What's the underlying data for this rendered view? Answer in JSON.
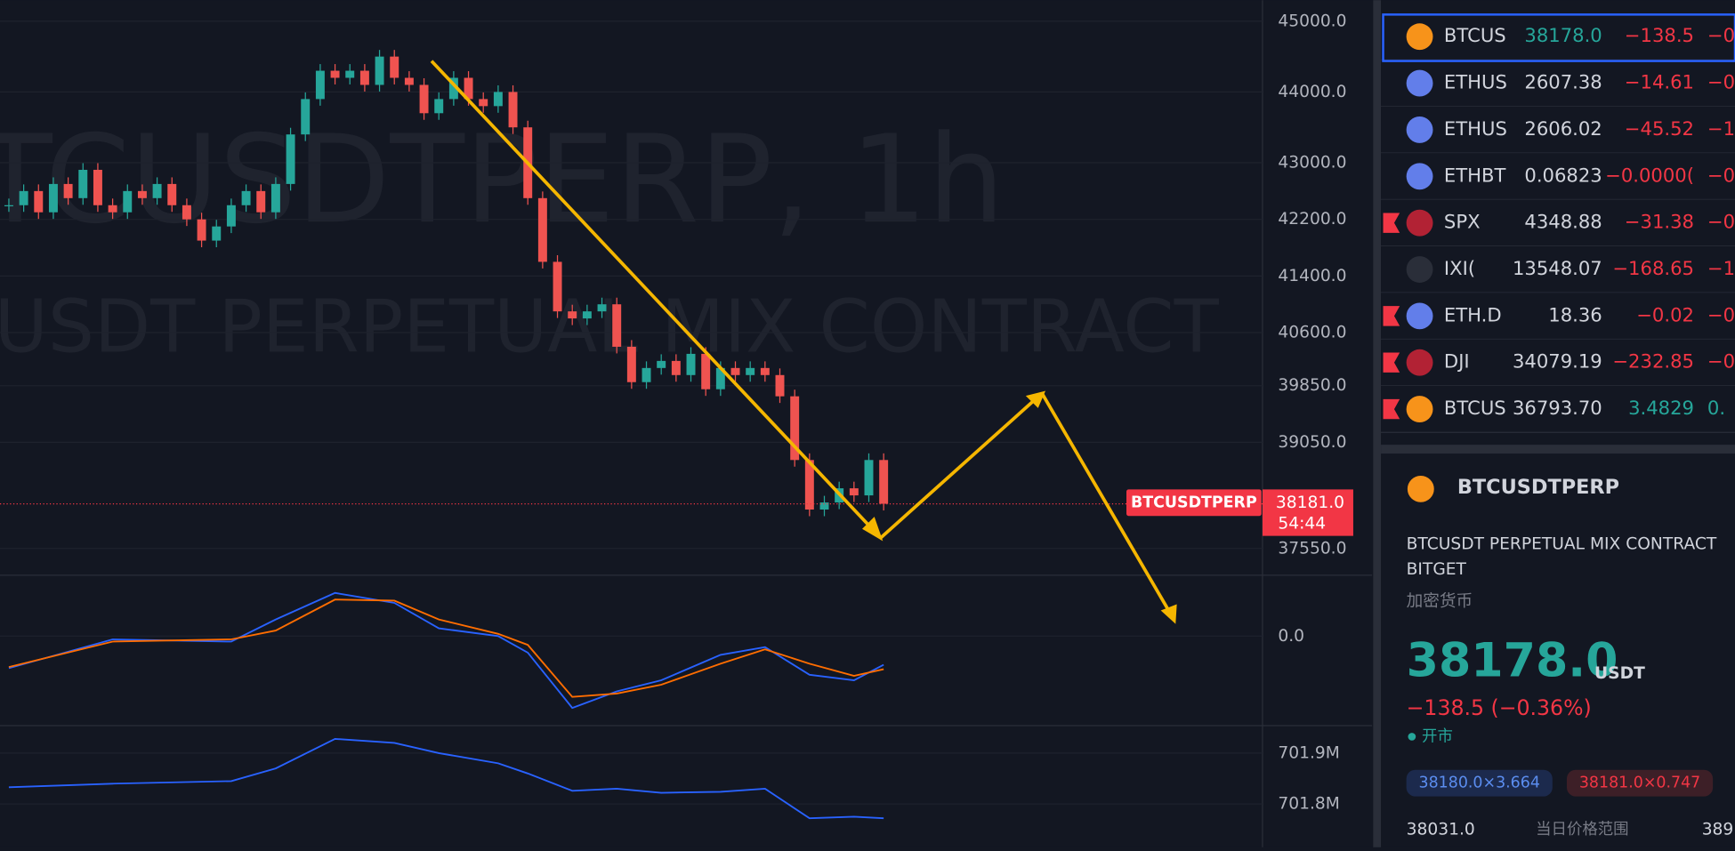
{
  "chart_data": [
    {
      "type": "candlestick",
      "watermark_symbol": "TCUSDTPERP, 1h",
      "watermark_description": "USDT PERPETUAL MIX CONTRACT",
      "values": [
        42400,
        42600,
        42300,
        42700,
        42500,
        42900,
        42400,
        42300,
        42600,
        42500,
        42700,
        42400,
        42200,
        41900,
        42100,
        42400,
        42600,
        42300,
        42700,
        43400,
        43900,
        44300,
        44200,
        44300,
        44100,
        44500,
        44200,
        44100,
        43700,
        43900,
        44200,
        43900,
        43800,
        44000,
        43500,
        42500,
        41600,
        40900,
        40800,
        40900,
        41000,
        40400,
        39900,
        40100,
        40200,
        40000,
        40300,
        39800,
        40100,
        40000,
        40100,
        40000,
        39700,
        38800,
        38100,
        38200,
        38400,
        38300,
        38800,
        38181
      ],
      "up_color": "#26a69a",
      "down_color": "#ef5350",
      "ylim": [
        37172,
        45297
      ],
      "yticks": [
        {
          "value": 45000,
          "label": "45000.0"
        },
        {
          "value": 44000,
          "label": "44000.0"
        },
        {
          "value": 43000,
          "label": "43000.0"
        },
        {
          "value": 42200,
          "label": "42200.0"
        },
        {
          "value": 41400,
          "label": "41400.0"
        },
        {
          "value": 40600,
          "label": "40600.0"
        },
        {
          "value": 39850,
          "label": "39850.0"
        },
        {
          "value": 39050,
          "label": "39050.0"
        },
        {
          "value": 37550,
          "label": "37550.0"
        }
      ],
      "price_tag": {
        "symbol": "BTCUSDTPERP",
        "price": {
          "value": 38181,
          "label": "38181.0"
        },
        "countdown": "54:44",
        "color": "#f23645"
      }
    },
    {
      "type": "line",
      "x": [
        0,
        7,
        15,
        18,
        22,
        26,
        29,
        33,
        35,
        38,
        41,
        44,
        48,
        51,
        54,
        57,
        59
      ],
      "series": [
        {
          "color": "#2962ff",
          "values": [
            -29,
            -3,
            -5,
            15,
            39,
            30,
            7,
            0,
            -15,
            -65,
            -50,
            -40,
            -17,
            -10,
            -35,
            -40,
            -26
          ]
        },
        {
          "color": "#ff6d00",
          "values": [
            -28,
            -5,
            -3,
            5,
            33,
            32,
            15,
            2,
            -8,
            -55,
            -52,
            -44,
            -25,
            -12,
            -25,
            -36,
            -30
          ]
        }
      ],
      "ylim": [
        -81,
        55
      ],
      "yticks": [
        {
          "value": 0,
          "label": "0.0"
        }
      ]
    },
    {
      "type": "line",
      "x": [
        0,
        7,
        15,
        18,
        22,
        26,
        29,
        33,
        35,
        38,
        41,
        44,
        48,
        51,
        54,
        57,
        59
      ],
      "series": [
        {
          "color": "#2962ff",
          "values": [
            701.833,
            701.84,
            701.845,
            701.87,
            701.928,
            701.92,
            701.9,
            701.88,
            701.86,
            701.826,
            701.83,
            701.822,
            701.824,
            701.83,
            701.772,
            701.775,
            701.772
          ]
        }
      ],
      "ylim": [
        701.715,
        701.954
      ],
      "yticks": [
        {
          "value": 701.9,
          "label": "701.9M"
        },
        {
          "value": 701.8,
          "label": "701.8M"
        }
      ]
    }
  ],
  "watchlist": [
    {
      "symbol": "BTCUS",
      "last": "38178.0",
      "change": "−138.5",
      "pct": "−0.",
      "icon": "#f7931a"
    },
    {
      "symbol": "ETHUS",
      "last": "2607.38",
      "change": "−14.61",
      "pct": "−0.",
      "icon": "#627eea"
    },
    {
      "symbol": "ETHUS",
      "last": "2606.02",
      "change": "−45.52",
      "pct": "−1.",
      "icon": "#627eea"
    },
    {
      "symbol": "ETHBT",
      "last": "0.06823",
      "change": "−0.0000(",
      "pct": "−0.",
      "icon": "#627eea"
    },
    {
      "symbol": "SPX",
      "last": "4348.88",
      "change": "−31.38",
      "pct": "−0.",
      "icon": "#b22234"
    },
    {
      "symbol": "IXI(",
      "last": "13548.07",
      "change": "−168.65",
      "pct": "−1.",
      "icon": "#2a2e39"
    },
    {
      "symbol": "ETH.D",
      "last": "18.36",
      "change": "−0.02",
      "pct": "−0.",
      "icon": "#627eea"
    },
    {
      "symbol": "DJI",
      "last": "34079.19",
      "change": "−232.85",
      "pct": "−0.",
      "icon": "#b22234"
    },
    {
      "symbol": "BTCUS",
      "last": "36793.70",
      "change": "3.4829",
      "pct": "0.",
      "icon": "#f7931a"
    }
  ],
  "details": {
    "symbol": "BTCUSDTPERP",
    "description": "BTCUSDT PERPETUAL MIX CONTRACT",
    "exchange": "BITGET",
    "category": "加密货币",
    "price": "38178.0",
    "currency": "USDT",
    "change": "−138.5 (−0.36%)",
    "status": "开市",
    "bid": "38180.0×3.664",
    "ask": "38181.0×0.747",
    "low": "38031.0",
    "range_label": "当日价格范围",
    "high": "389"
  }
}
